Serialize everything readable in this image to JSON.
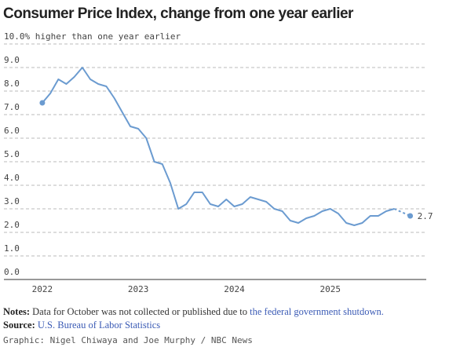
{
  "chart_data": {
    "type": "line",
    "title": "Consumer Price Index, change from one year earlier",
    "x": [
      2022,
      2022.083,
      2022.167,
      2022.25,
      2022.333,
      2022.417,
      2022.5,
      2022.583,
      2022.667,
      2022.75,
      2022.833,
      2022.917,
      2023,
      2023.083,
      2023.167,
      2023.25,
      2023.333,
      2023.417,
      2023.5,
      2023.583,
      2023.667,
      2023.75,
      2023.833,
      2023.917,
      2024,
      2024.083,
      2024.167,
      2024.25,
      2024.333,
      2024.417,
      2024.5,
      2024.583,
      2024.667,
      2024.75,
      2024.833,
      2024.917,
      2025,
      2025.083,
      2025.167,
      2025.25,
      2025.333,
      2025.417,
      2025.5,
      2025.583,
      2025.667,
      2025.75,
      2025.833
    ],
    "values": [
      7.5,
      7.9,
      8.5,
      8.3,
      8.6,
      9.0,
      8.5,
      8.3,
      8.2,
      7.7,
      7.1,
      6.5,
      6.4,
      6.0,
      5.0,
      4.9,
      4.1,
      3.0,
      3.2,
      3.7,
      3.7,
      3.2,
      3.1,
      3.4,
      3.1,
      3.2,
      3.5,
      3.4,
      3.3,
      3.0,
      2.9,
      2.5,
      2.4,
      2.6,
      2.7,
      2.9,
      3.0,
      2.8,
      2.4,
      2.3,
      2.4,
      2.7,
      2.7,
      2.9,
      3.0,
      null,
      2.7
    ],
    "color": "#6b9bd0",
    "xlim": [
      2021.6,
      2026
    ],
    "xticks": [
      2022,
      2023,
      2024,
      2025
    ],
    "ylim": [
      0,
      10
    ],
    "yticks": [
      {
        "value": 0,
        "label": "0.0"
      },
      {
        "value": 1,
        "label": "1.0"
      },
      {
        "value": 2,
        "label": "2.0"
      },
      {
        "value": 3,
        "label": "3.0"
      },
      {
        "value": 4,
        "label": "4.0"
      },
      {
        "value": 5,
        "label": "5.0"
      },
      {
        "value": 6,
        "label": "6.0"
      },
      {
        "value": 7,
        "label": "7.0"
      },
      {
        "value": 8,
        "label": "8.0"
      },
      {
        "value": 9,
        "label": "9.0"
      },
      {
        "value": 10,
        "label": "10.0% higher than one year earlier"
      }
    ],
    "grid": true
  },
  "notes": {
    "label": "Notes:",
    "text": "Data for October was not collected or published due to",
    "link": "the federal government shutdown."
  },
  "source": {
    "label": "Source:",
    "text": "U.S. Bureau of Labor Statistics"
  },
  "credit": "Graphic: Nigel Chiwaya and Joe Murphy / NBC News"
}
